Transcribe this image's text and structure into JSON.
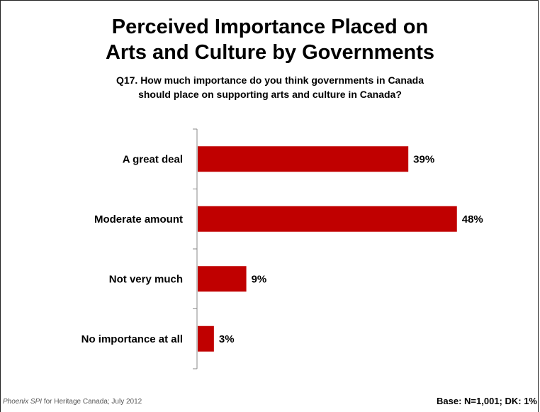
{
  "chart_data": {
    "type": "bar",
    "orientation": "horizontal",
    "title_line1": "Perceived Importance Placed on",
    "title_line2": "Arts and Culture by Governments",
    "subtitle_line1": "Q17. How much importance do you think governments in Canada",
    "subtitle_line2": "should place on supporting arts and culture in Canada?",
    "categories": [
      "A great deal",
      "Moderate amount",
      "Not very much",
      "No importance at all"
    ],
    "values": [
      39,
      48,
      9,
      3
    ],
    "value_labels": [
      "39%",
      "48%",
      "9%",
      "3%"
    ],
    "unit": "%",
    "xlim": [
      0,
      60
    ],
    "grid": false,
    "bar_color": "#C00000"
  },
  "footer": {
    "source_italic": "Phoenix SPI",
    "source_rest": " for Heritage Canada; July 2012",
    "base_note": "Base: N=1,001; DK: 1%"
  }
}
